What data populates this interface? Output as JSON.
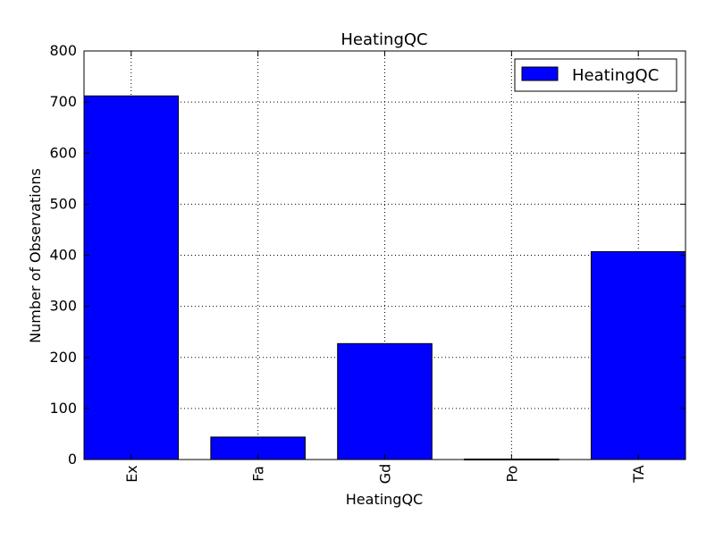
{
  "chart_data": {
    "type": "bar",
    "title": "HeatingQC",
    "xlabel": "HeatingQC",
    "ylabel": "Number of Observations",
    "categories": [
      "Ex",
      "Fa",
      "Gd",
      "Po",
      "TA"
    ],
    "series": [
      {
        "name": "HeatingQC",
        "values": [
          712,
          44,
          227,
          1,
          407
        ],
        "color": "#0000ff"
      }
    ],
    "ylim": [
      0,
      800
    ],
    "yticks": [
      0,
      100,
      200,
      300,
      400,
      500,
      600,
      700,
      800
    ],
    "grid": true,
    "legend_position": "top-right"
  }
}
